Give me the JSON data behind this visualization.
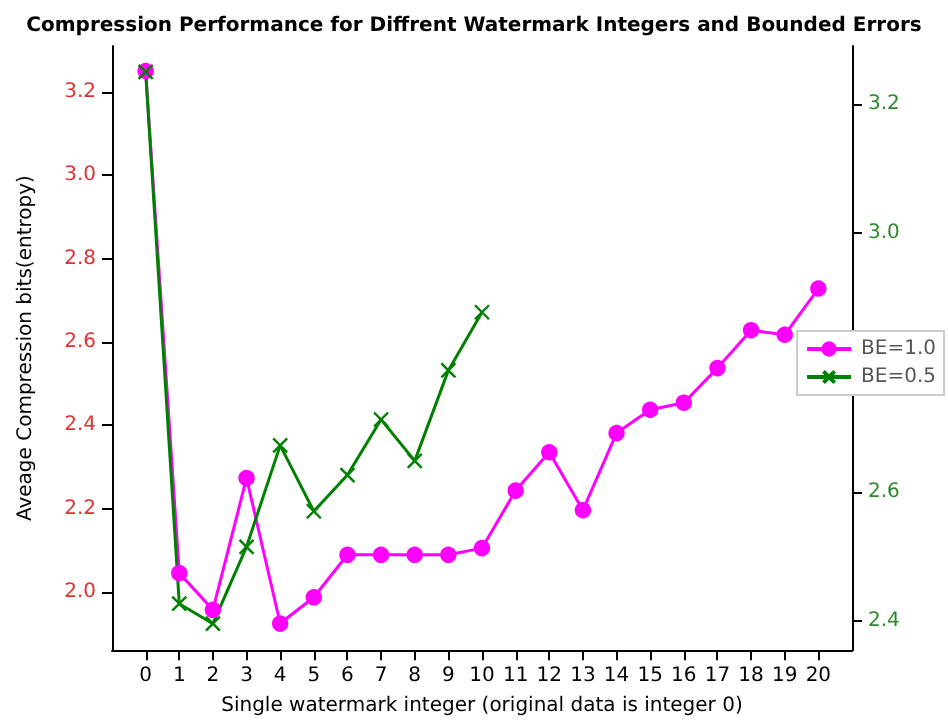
{
  "chart_data": {
    "type": "line",
    "title": "Compression Performance for Diffrent Watermark Integers and Bounded Errors",
    "xlabel": "Single watermark integer (original data is integer 0)",
    "ylabel": "Aveage Compression bits(entropy)",
    "x": [
      0,
      1,
      2,
      3,
      4,
      5,
      6,
      7,
      8,
      9,
      10,
      11,
      12,
      13,
      14,
      15,
      16,
      17,
      18,
      19,
      20
    ],
    "xlim": [
      -1,
      21
    ],
    "xticks": [
      0,
      1,
      2,
      3,
      4,
      5,
      6,
      7,
      8,
      9,
      10,
      11,
      12,
      13,
      14,
      15,
      16,
      17,
      18,
      19,
      20
    ],
    "ylim": [
      1.86,
      3.31
    ],
    "yticks": [
      {
        "value": 2.0,
        "label": "2.0"
      },
      2.2,
      2.4,
      2.6,
      2.8,
      {
        "value": 3.0,
        "label": "3.0"
      },
      3.2
    ],
    "y2lim": [
      2.355,
      3.29
    ],
    "y2ticks": [
      2.4,
      2.6,
      {
        "value": 2.8,
        "label": null
      },
      {
        "value": 3.0,
        "label": "3.0"
      },
      3.2
    ],
    "series": [
      {
        "name": "BE=1.0",
        "color": "#ff00ff",
        "marker": "circle",
        "values": [
          3.25,
          2.045,
          1.957,
          2.273,
          1.924,
          1.987,
          2.089,
          2.089,
          2.089,
          2.089,
          2.105,
          2.243,
          2.335,
          2.196,
          2.381,
          2.437,
          2.454,
          2.537,
          2.628,
          2.617,
          2.728
        ]
      },
      {
        "name": "BE=0.5",
        "color": "#008000",
        "marker": "cross",
        "axis": "y2",
        "x": [
          0,
          1,
          2,
          3,
          4,
          5,
          6,
          7,
          8,
          9,
          10
        ],
        "values": [
          3.25,
          2.427,
          2.396,
          2.515,
          2.672,
          2.57,
          2.626,
          2.712,
          2.648,
          2.788,
          2.878
        ]
      }
    ],
    "legend": "right",
    "grid": false,
    "line_style": "solid"
  }
}
